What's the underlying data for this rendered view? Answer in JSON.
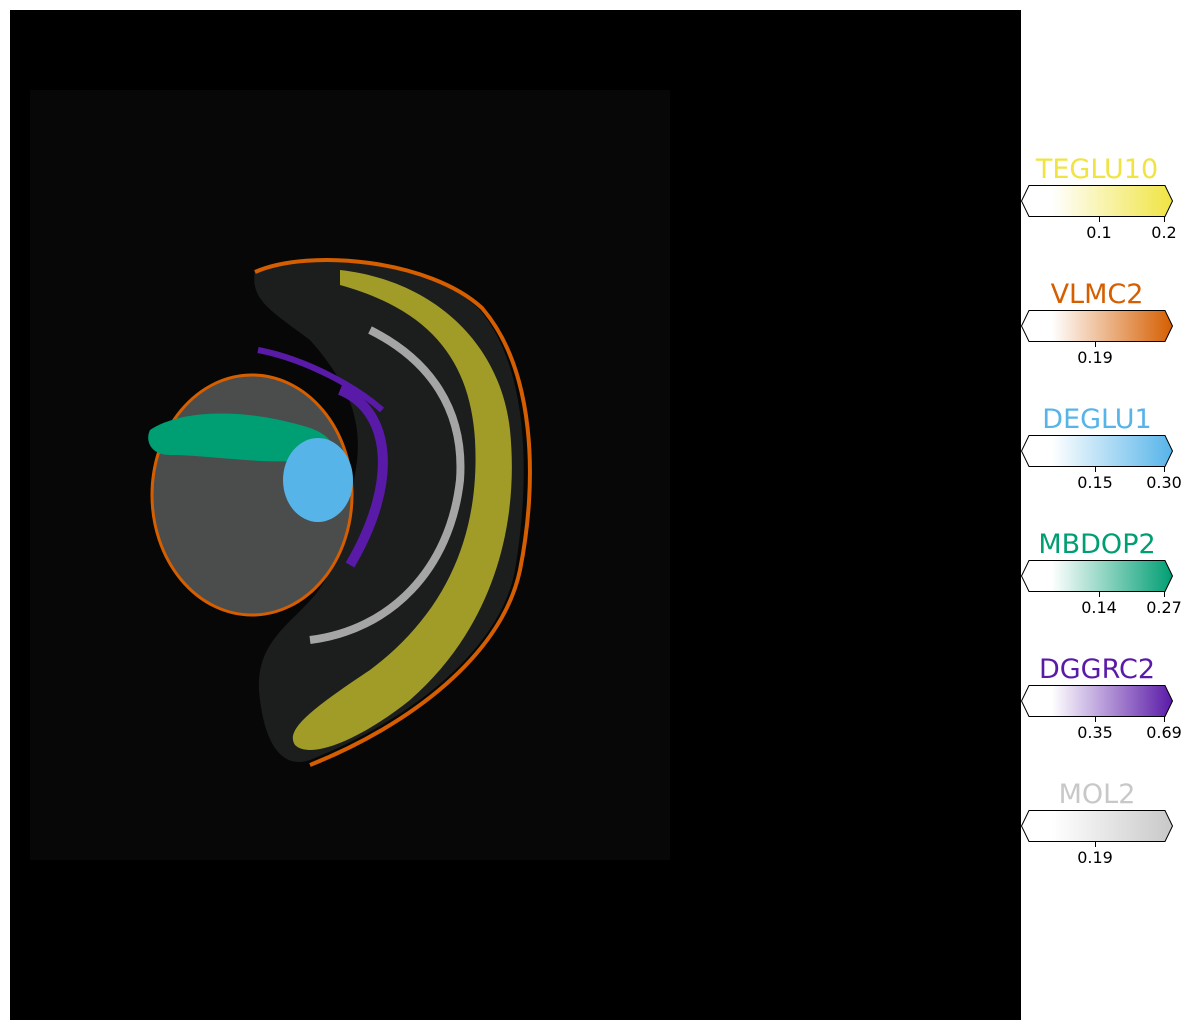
{
  "image": {
    "description_icon": "brain-tissue-section-icon",
    "background": "#000000"
  },
  "legends": [
    {
      "name": "TEGLU10",
      "color": "#f0e442",
      "ticks": [
        {
          "label": "0.1",
          "frac": 0.51
        },
        {
          "label": "0.2",
          "frac": 0.94
        }
      ]
    },
    {
      "name": "VLMC2",
      "color": "#d55e00",
      "ticks": [
        {
          "label": "0.19",
          "frac": 0.49
        }
      ]
    },
    {
      "name": "DEGLU1",
      "color": "#56b4e9",
      "ticks": [
        {
          "label": "0.15",
          "frac": 0.49
        },
        {
          "label": "0.30",
          "frac": 0.94
        }
      ]
    },
    {
      "name": "MBDOP2",
      "color": "#009e73",
      "ticks": [
        {
          "label": "0.14",
          "frac": 0.51
        },
        {
          "label": "0.27",
          "frac": 0.94
        }
      ]
    },
    {
      "name": "DGGRC2",
      "color": "#5a1aa8",
      "ticks": [
        {
          "label": "0.35",
          "frac": 0.49
        },
        {
          "label": "0.69",
          "frac": 0.94
        }
      ]
    },
    {
      "name": "MOL2",
      "color": "#c8c8c8",
      "ticks": [
        {
          "label": "0.19",
          "frac": 0.49
        }
      ]
    }
  ]
}
